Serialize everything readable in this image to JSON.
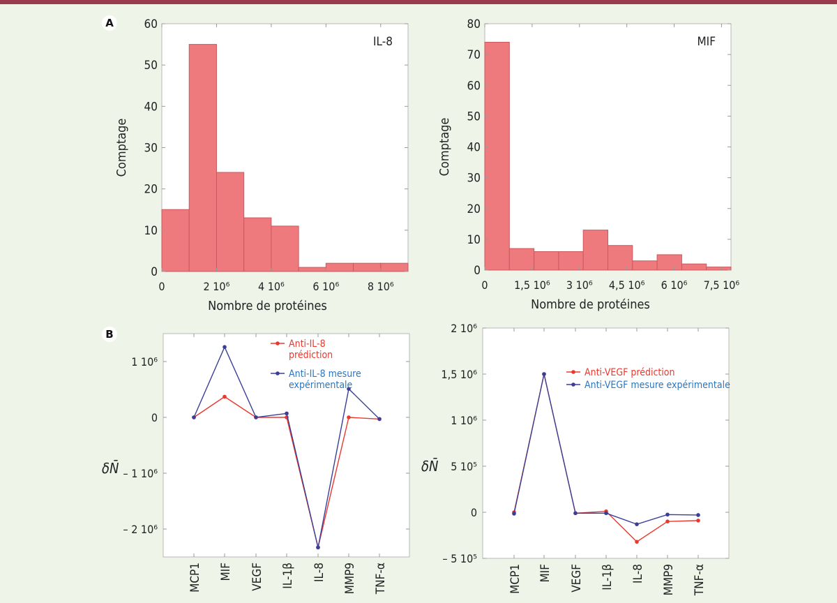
{
  "panels": {
    "a": "A",
    "b": "B"
  },
  "chart_data": [
    {
      "type": "histogram",
      "label": "IL-8",
      "ylabel": "Comptage",
      "xlabel": "Nombre de protéines",
      "xlim": [
        0,
        9000000
      ],
      "ylim": [
        0,
        60
      ],
      "yticks": [
        0,
        10,
        20,
        30,
        40,
        50,
        60
      ],
      "xticks": [
        0,
        2000000,
        4000000,
        6000000,
        8000000
      ],
      "xtick_labels": [
        "0",
        "2 10⁶",
        "4 10⁶",
        "6 10⁶",
        "8 10⁶"
      ],
      "bins": [
        {
          "x0": 0,
          "x1": 1000000,
          "count": 15
        },
        {
          "x0": 1000000,
          "x1": 2000000,
          "count": 55
        },
        {
          "x0": 2000000,
          "x1": 3000000,
          "count": 24
        },
        {
          "x0": 3000000,
          "x1": 4000000,
          "count": 13
        },
        {
          "x0": 4000000,
          "x1": 5000000,
          "count": 11
        },
        {
          "x0": 5000000,
          "x1": 6000000,
          "count": 1
        },
        {
          "x0": 6000000,
          "x1": 7000000,
          "count": 2
        },
        {
          "x0": 7000000,
          "x1": 8000000,
          "count": 2
        },
        {
          "x0": 8000000,
          "x1": 9000000,
          "count": 2
        }
      ]
    },
    {
      "type": "histogram",
      "label": "MIF",
      "ylabel": "Comptage",
      "xlabel": "Nombre de protéines",
      "xlim": [
        0,
        7800000
      ],
      "ylim": [
        0,
        80
      ],
      "yticks": [
        0,
        10,
        20,
        30,
        40,
        50,
        60,
        70,
        80
      ],
      "xticks": [
        0,
        1500000,
        3000000,
        4500000,
        6000000,
        7500000
      ],
      "xtick_labels": [
        "0",
        "1,5 10⁶",
        "3 10⁶",
        "4,5 10⁶",
        "6 10⁶",
        "7,5 10⁶"
      ],
      "bins": [
        {
          "x0": 0,
          "x1": 780000,
          "count": 74
        },
        {
          "x0": 780000,
          "x1": 1560000,
          "count": 7
        },
        {
          "x0": 1560000,
          "x1": 2340000,
          "count": 6
        },
        {
          "x0": 2340000,
          "x1": 3120000,
          "count": 6
        },
        {
          "x0": 3120000,
          "x1": 3900000,
          "count": 13
        },
        {
          "x0": 3900000,
          "x1": 4680000,
          "count": 8
        },
        {
          "x0": 4680000,
          "x1": 5460000,
          "count": 3
        },
        {
          "x0": 5460000,
          "x1": 6240000,
          "count": 5
        },
        {
          "x0": 6240000,
          "x1": 7020000,
          "count": 2
        },
        {
          "x0": 7020000,
          "x1": 7800000,
          "count": 1
        }
      ]
    },
    {
      "type": "line",
      "ylabel": "δN̄",
      "categories": [
        "MCP1",
        "MIF",
        "VEGF",
        "IL-1β",
        "IL-8",
        "MMP9",
        "TNF-α"
      ],
      "ylim": [
        -2500000,
        1500000
      ],
      "yticks": [
        -2000000,
        -1000000,
        0,
        1000000
      ],
      "ytick_labels": [
        "– 2 10⁶",
        "– 1 10⁶",
        "0",
        "1 10⁶"
      ],
      "series": [
        {
          "name": "Anti-IL-8 prédiction",
          "color": "#e8392f",
          "values": [
            0,
            370000,
            0,
            0,
            -2330000,
            0,
            -30000
          ]
        },
        {
          "name": "Anti-IL-8 mesure expérimentale",
          "color": "#3a3e96",
          "values": [
            0,
            1260000,
            0,
            70000,
            -2330000,
            510000,
            -30000
          ]
        }
      ]
    },
    {
      "type": "line",
      "ylabel": "δN̄",
      "categories": [
        "MCP1",
        "MIF",
        "VEGF",
        "IL-1β",
        "IL-8",
        "MMP9",
        "TNF-α"
      ],
      "ylim": [
        -500000,
        2000000
      ],
      "yticks": [
        -500000,
        0,
        500000,
        1000000,
        1500000,
        2000000
      ],
      "ytick_labels": [
        "– 5 10⁵",
        "0",
        "5 10⁵",
        "1 10⁶",
        "1,5 10⁶",
        "2 10⁶"
      ],
      "series": [
        {
          "name": "Anti-VEGF prédiction",
          "color": "#e8392f",
          "values": [
            0,
            1500000,
            -10000,
            10000,
            -320000,
            -100000,
            -90000
          ]
        },
        {
          "name": "Anti-VEGF mesure expérimentale",
          "color": "#3a3e96",
          "values": [
            -15000,
            1500000,
            -10000,
            -10000,
            -130000,
            -25000,
            -30000
          ]
        }
      ]
    }
  ]
}
